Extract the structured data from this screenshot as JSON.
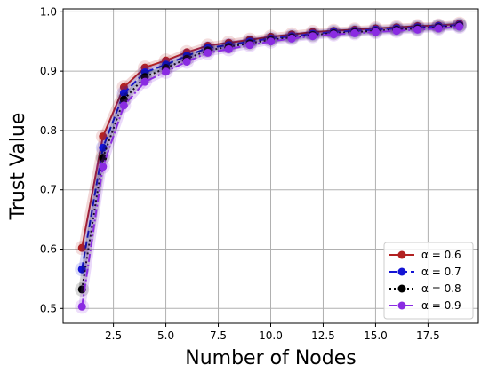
{
  "chart_data": {
    "type": "line",
    "title": "",
    "xlabel": "Number of Nodes",
    "ylabel": "Trust Value",
    "xlim": [
      0.1,
      19.9
    ],
    "ylim": [
      0.475,
      1.005
    ],
    "xticks": [
      2.5,
      5.0,
      7.5,
      10.0,
      12.5,
      15.0,
      17.5
    ],
    "xtick_labels": [
      "2.5",
      "5.0",
      "7.5",
      "10.0",
      "12.5",
      "15.0",
      "17.5"
    ],
    "yticks": [
      0.5,
      0.6,
      0.7,
      0.8,
      0.9,
      1.0
    ],
    "ytick_labels": [
      "0.5",
      "0.6",
      "0.7",
      "0.8",
      "0.9",
      "1.0"
    ],
    "grid": true,
    "legend_position": "bottom-right",
    "x": [
      1,
      2,
      3,
      4,
      5,
      6,
      7,
      8,
      9,
      10,
      11,
      12,
      13,
      14,
      15,
      16,
      17,
      18,
      19
    ],
    "series": [
      {
        "name": "α = 0.6",
        "color": "#b22222",
        "dash": "solid",
        "values": [
          0.602,
          0.79,
          0.873,
          0.906,
          0.918,
          0.932,
          0.943,
          0.948,
          0.953,
          0.958,
          0.962,
          0.966,
          0.968,
          0.97,
          0.972,
          0.974,
          0.976,
          0.977,
          0.98
        ]
      },
      {
        "name": "α = 0.7",
        "color": "#1414d4",
        "dash": "dashed",
        "values": [
          0.566,
          0.771,
          0.863,
          0.898,
          0.911,
          0.926,
          0.939,
          0.944,
          0.95,
          0.955,
          0.959,
          0.963,
          0.966,
          0.968,
          0.97,
          0.972,
          0.974,
          0.976,
          0.978
        ]
      },
      {
        "name": "α = 0.8",
        "color": "#000000",
        "dash": "dotted",
        "values": [
          0.532,
          0.754,
          0.852,
          0.89,
          0.905,
          0.921,
          0.935,
          0.941,
          0.947,
          0.953,
          0.957,
          0.961,
          0.964,
          0.966,
          0.968,
          0.97,
          0.972,
          0.974,
          0.977
        ]
      },
      {
        "name": "α = 0.9",
        "color": "#8a2be2",
        "dash": "dashdot",
        "values": [
          0.503,
          0.739,
          0.842,
          0.882,
          0.899,
          0.916,
          0.931,
          0.937,
          0.944,
          0.95,
          0.955,
          0.959,
          0.962,
          0.964,
          0.966,
          0.968,
          0.97,
          0.972,
          0.975
        ]
      }
    ]
  }
}
